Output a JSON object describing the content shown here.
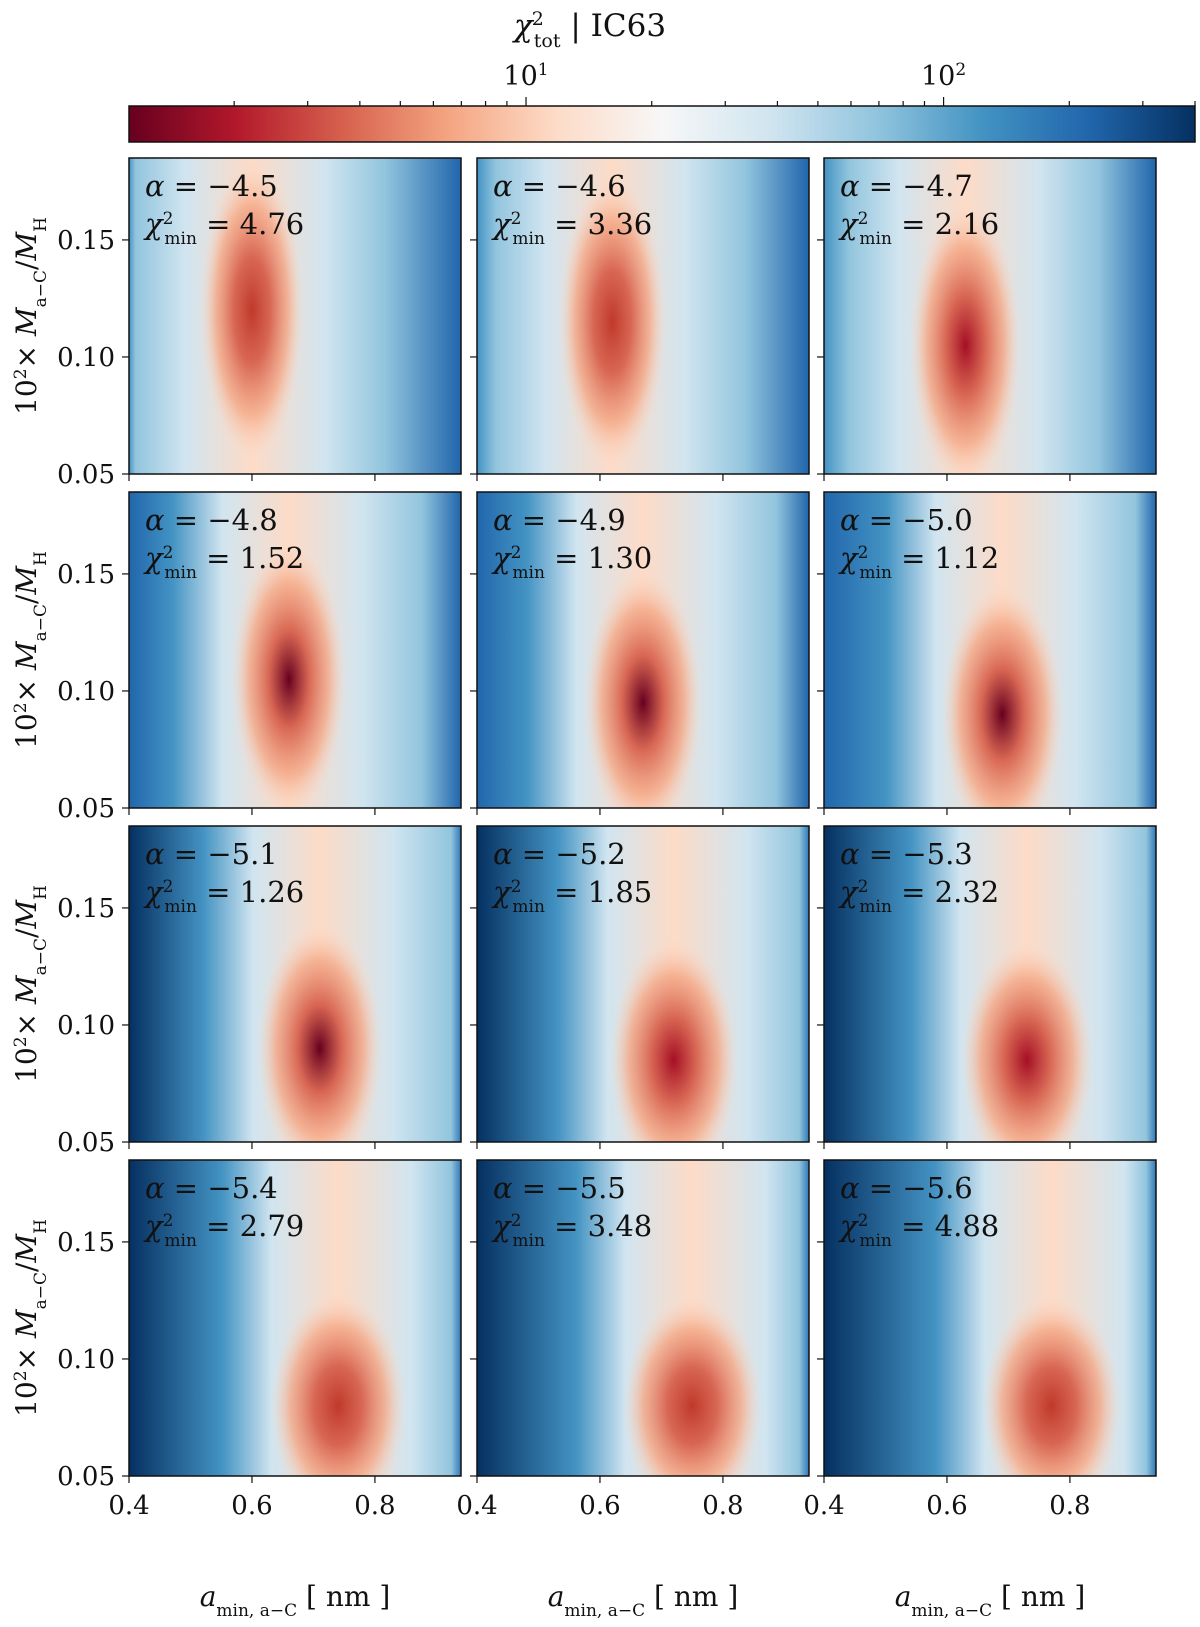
{
  "colorbar": {
    "title_main": "χ",
    "title_sup": "2",
    "title_sub": "tot",
    "title_rest": " | IC63",
    "scale": "log",
    "range": [
      1.12,
      400
    ],
    "major_ticks": [
      {
        "value": 10,
        "base": "10",
        "exp": "1"
      },
      {
        "value": 100,
        "base": "10",
        "exp": "2"
      }
    ],
    "colors": [
      "#67001f",
      "#b2182b",
      "#d6604d",
      "#f4a582",
      "#fddbc7",
      "#f7f7f7",
      "#d1e5f0",
      "#92c5de",
      "#4393c3",
      "#2166ac",
      "#053061"
    ]
  },
  "axes": {
    "xlabel_main": "a",
    "xlabel_sub": "min, a−C",
    "xlabel_unit": "[ nm ]",
    "ylabel_prefix": "10",
    "ylabel_prefix_sup": "2",
    "ylabel_times": "×",
    "ylabel_M1": "M",
    "ylabel_M1_sub": "a−C",
    "ylabel_slash": "/",
    "ylabel_M2": "M",
    "ylabel_M2_sub": "H",
    "xlim": [
      0.4,
      0.94
    ],
    "ylim": [
      0.05,
      0.185
    ],
    "xticks": [
      "0.4",
      "0.6",
      "0.8"
    ],
    "yticks": [
      "0.05",
      "0.10",
      "0.15"
    ]
  },
  "chart_data": {
    "type": "heatmap",
    "title": "χ²_tot | IC63",
    "xlabel": "a_min,a−C [ nm ]",
    "ylabel": "10²× M_a−C/M_H",
    "xlim": [
      0.4,
      0.94
    ],
    "ylim": [
      0.05,
      0.185
    ],
    "colorbar_label": "χ²_tot | IC63",
    "colorbar_scale": "log",
    "colorbar_ticks": [
      10,
      100
    ],
    "panels": [
      {
        "alpha": "−4.5",
        "chi2_min": "4.76",
        "min_at": [
          0.6,
          0.12
        ]
      },
      {
        "alpha": "−4.6",
        "chi2_min": "3.36",
        "min_at": [
          0.62,
          0.115
        ]
      },
      {
        "alpha": "−4.7",
        "chi2_min": "2.16",
        "min_at": [
          0.63,
          0.105
        ]
      },
      {
        "alpha": "−4.8",
        "chi2_min": "1.52",
        "min_at": [
          0.66,
          0.105
        ]
      },
      {
        "alpha": "−4.9",
        "chi2_min": "1.30",
        "min_at": [
          0.67,
          0.095
        ]
      },
      {
        "alpha": "−5.0",
        "chi2_min": "1.12",
        "min_at": [
          0.69,
          0.09
        ]
      },
      {
        "alpha": "−5.1",
        "chi2_min": "1.26",
        "min_at": [
          0.71,
          0.09
        ]
      },
      {
        "alpha": "−5.2",
        "chi2_min": "1.85",
        "min_at": [
          0.72,
          0.085
        ]
      },
      {
        "alpha": "−5.3",
        "chi2_min": "2.32",
        "min_at": [
          0.73,
          0.085
        ]
      },
      {
        "alpha": "−5.4",
        "chi2_min": "2.79",
        "min_at": [
          0.74,
          0.08
        ]
      },
      {
        "alpha": "−5.5",
        "chi2_min": "3.48",
        "min_at": [
          0.75,
          0.08
        ]
      },
      {
        "alpha": "−5.6",
        "chi2_min": "4.88",
        "min_at": [
          0.77,
          0.08
        ]
      }
    ]
  },
  "labels": {
    "alpha_symbol": "α",
    "equals": "=",
    "chi_symbol": "χ",
    "chi_sup": "2",
    "chi_sub": "min"
  }
}
